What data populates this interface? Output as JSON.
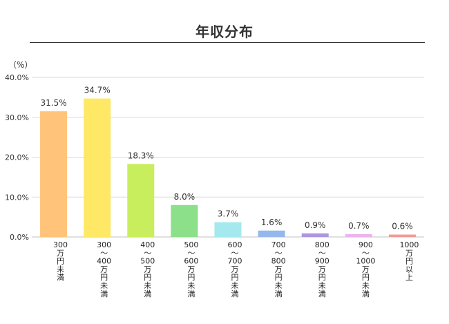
{
  "chart_data": {
    "type": "bar",
    "title": "年収分布",
    "ylabel": "（%）",
    "xlabel": "",
    "ylim": [
      0,
      40
    ],
    "yticks": [
      0,
      10,
      20,
      30,
      40
    ],
    "ytick_labels": [
      "0.0%",
      "10.0%",
      "20.0%",
      "30.0%",
      "40.0%"
    ],
    "grid": true,
    "legend": "none",
    "categories": [
      "300万円未満",
      "300～400万円未満",
      "400～500万円未満",
      "500～600万円未満",
      "600～700万円未満",
      "700～800万円未満",
      "800～900万円未満",
      "900～1000万円未満",
      "1000万円以上"
    ],
    "category_lines": [
      [
        "300",
        "万",
        "円",
        "未",
        "満"
      ],
      [
        "300",
        "～",
        "400",
        "万",
        "円",
        "未",
        "満"
      ],
      [
        "400",
        "～",
        "500",
        "万",
        "円",
        "未",
        "満"
      ],
      [
        "500",
        "～",
        "600",
        "万",
        "円",
        "未",
        "満"
      ],
      [
        "600",
        "～",
        "700",
        "万",
        "円",
        "未",
        "満"
      ],
      [
        "700",
        "～",
        "800",
        "万",
        "円",
        "未",
        "満"
      ],
      [
        "800",
        "～",
        "900",
        "万",
        "円",
        "未",
        "満"
      ],
      [
        "900",
        "～",
        "1000",
        "万",
        "円",
        "未",
        "満"
      ],
      [
        "1000",
        "万",
        "円",
        "以",
        "上"
      ]
    ],
    "values": [
      31.5,
      34.7,
      18.3,
      8.0,
      3.7,
      1.6,
      0.9,
      0.7,
      0.6
    ],
    "data_labels": [
      "31.5%",
      "34.7%",
      "18.3%",
      "8.0%",
      "3.7%",
      "1.6%",
      "0.9%",
      "0.7%",
      "0.6%"
    ],
    "colors": [
      "#FFC47A",
      "#FFE866",
      "#C8EE5E",
      "#8CE08A",
      "#A3E9EE",
      "#95B8EC",
      "#AE95E2",
      "#EAB4F0",
      "#F29A96"
    ]
  }
}
